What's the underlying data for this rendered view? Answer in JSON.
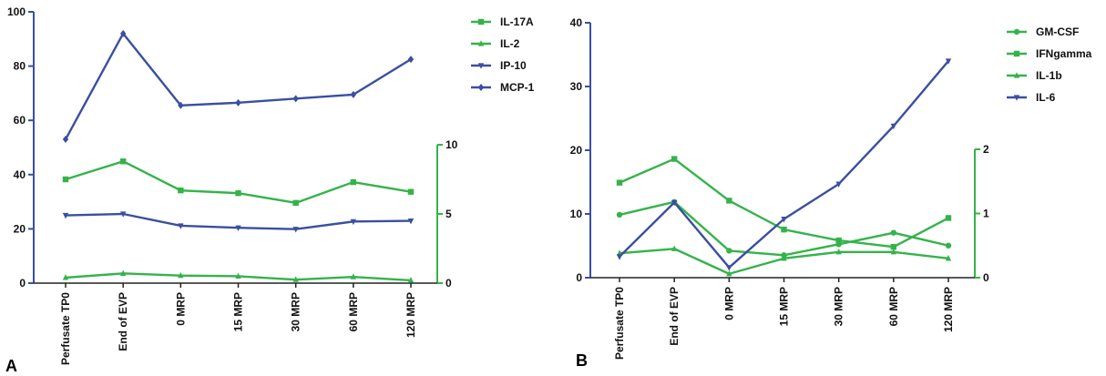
{
  "chart_data": [
    {
      "panel_label": "A",
      "type": "line",
      "categories": [
        "Perfusate TP0",
        "End of EVP",
        "0 MRP",
        "15 MRP",
        "30 MRP",
        "60 MRP",
        "120 MRP"
      ],
      "left_axis": {
        "ylim": [
          0,
          100
        ],
        "ticks": [
          "0",
          "20",
          "40",
          "60",
          "80",
          "100"
        ],
        "color": "#3a4fa0"
      },
      "right_axis": {
        "ylim": [
          0,
          10
        ],
        "ticks": [
          "0",
          "5",
          "10"
        ],
        "color": "#34b34a"
      },
      "legend_position": "top-right",
      "series": [
        {
          "name": "IL-17A",
          "axis": "right",
          "color": "#34b34a",
          "marker": "square",
          "values": [
            7.5,
            8.8,
            6.7,
            6.5,
            5.8,
            7.3,
            6.6
          ]
        },
        {
          "name": "IL-2",
          "axis": "right",
          "color": "#34b34a",
          "marker": "triangle-up",
          "values": [
            0.4,
            0.7,
            0.55,
            0.5,
            0.25,
            0.45,
            0.2
          ]
        },
        {
          "name": "IP-10",
          "axis": "right",
          "color": "#3a4fa0",
          "marker": "triangle-down",
          "values": [
            4.9,
            5.0,
            4.15,
            4.0,
            3.9,
            4.45,
            4.5
          ]
        },
        {
          "name": "MCP-1",
          "axis": "left",
          "color": "#3a4fa0",
          "marker": "diamond",
          "values": [
            53,
            92,
            65.5,
            66.5,
            68,
            69.5,
            82.5
          ]
        }
      ]
    },
    {
      "panel_label": "B",
      "type": "line",
      "categories": [
        "Perfusate TP0",
        "End of EVP",
        "0 MRP",
        "15 MRP",
        "30 MRP",
        "60 MRP",
        "120 MRP"
      ],
      "left_axis": {
        "ylim": [
          0,
          40
        ],
        "ticks": [
          "0",
          "10",
          "20",
          "30",
          "40"
        ],
        "color": "#3a4fa0"
      },
      "right_axis": {
        "ylim": [
          0,
          2
        ],
        "ticks": [
          "0",
          "1",
          "2"
        ],
        "color": "#34b34a"
      },
      "legend_position": "top-right",
      "series": [
        {
          "name": "GM-CSF",
          "axis": "right",
          "color": "#34b34a",
          "marker": "circle",
          "values": [
            0.98,
            1.18,
            0.42,
            0.35,
            0.52,
            0.7,
            0.5
          ]
        },
        {
          "name": "IFNgamma",
          "axis": "right",
          "color": "#34b34a",
          "marker": "square",
          "values": [
            1.48,
            1.85,
            1.2,
            0.75,
            0.58,
            0.48,
            0.93
          ]
        },
        {
          "name": "IL-1b",
          "axis": "right",
          "color": "#34b34a",
          "marker": "triangle-up",
          "values": [
            0.38,
            0.45,
            0.06,
            0.3,
            0.4,
            0.4,
            0.3
          ]
        },
        {
          "name": "IL-6",
          "axis": "left",
          "color": "#3a4fa0",
          "marker": "triangle-down",
          "values": [
            3.3,
            11.8,
            1.6,
            9.2,
            14.7,
            23.8,
            34
          ]
        }
      ]
    }
  ]
}
